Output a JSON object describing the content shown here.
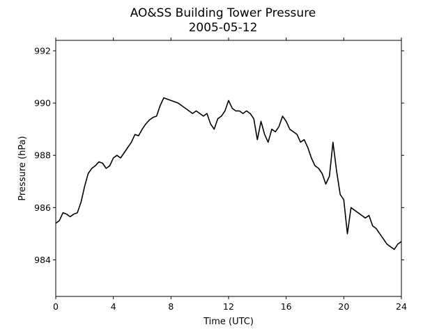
{
  "chart_data": {
    "type": "line",
    "title": "AO&SS Building Tower Pressure",
    "subtitle": "2005-05-12",
    "xlabel": "Time (UTC)",
    "ylabel": "Pressure (hPa)",
    "xlim": [
      0,
      24
    ],
    "ylim": [
      982.6,
      992.4
    ],
    "xticks": [
      0,
      4,
      8,
      12,
      16,
      20,
      24
    ],
    "yticks": [
      984,
      986,
      988,
      990,
      992
    ],
    "grid": false,
    "line_color": "#000000",
    "series": [
      {
        "x": [
          0,
          0.25,
          0.5,
          0.75,
          1.0,
          1.25,
          1.5,
          1.75,
          2.0,
          2.25,
          2.5,
          2.75,
          3.0,
          3.25,
          3.5,
          3.75,
          4.0,
          4.25,
          4.5,
          4.75,
          5.0,
          5.25,
          5.5,
          5.75,
          6.0,
          6.25,
          6.5,
          6.75,
          7.0,
          7.25,
          7.5,
          7.75,
          8.0,
          8.25,
          8.5,
          8.75,
          9.0,
          9.25,
          9.5,
          9.75,
          10.0,
          10.25,
          10.5,
          10.75,
          11.0,
          11.25,
          11.5,
          11.75,
          12.0,
          12.25,
          12.5,
          12.75,
          13.0,
          13.25,
          13.5,
          13.75,
          14.0,
          14.25,
          14.5,
          14.75,
          15.0,
          15.25,
          15.5,
          15.75,
          16.0,
          16.25,
          16.5,
          16.75,
          17.0,
          17.25,
          17.5,
          17.75,
          18.0,
          18.25,
          18.5,
          18.75,
          19.0,
          19.25,
          19.5,
          19.75,
          20.0,
          20.25,
          20.5,
          20.75,
          21.0,
          21.25,
          21.5,
          21.75,
          22.0,
          22.25,
          22.5,
          22.75,
          23.0,
          23.25,
          23.5,
          23.75,
          24.0
        ],
        "y": [
          985.4,
          985.5,
          985.8,
          985.75,
          985.65,
          985.75,
          985.8,
          986.2,
          986.8,
          987.3,
          987.5,
          987.6,
          987.75,
          987.7,
          987.5,
          987.6,
          987.9,
          988.0,
          987.9,
          988.1,
          988.3,
          988.5,
          988.8,
          988.75,
          989.0,
          989.2,
          989.35,
          989.45,
          989.5,
          989.9,
          990.2,
          990.15,
          990.1,
          990.05,
          990.0,
          989.9,
          989.8,
          989.7,
          989.6,
          989.7,
          989.6,
          989.5,
          989.6,
          989.2,
          989.0,
          989.4,
          989.5,
          989.7,
          990.1,
          989.8,
          989.7,
          989.7,
          989.6,
          989.7,
          989.6,
          989.4,
          988.6,
          989.3,
          988.8,
          988.5,
          989.0,
          988.9,
          989.1,
          989.5,
          989.3,
          989.0,
          988.9,
          988.8,
          988.5,
          988.6,
          988.3,
          987.9,
          987.6,
          987.5,
          987.3,
          986.9,
          987.2,
          988.5,
          987.4,
          986.5,
          986.3,
          985.0,
          986.0,
          985.9,
          985.8,
          985.7,
          985.6,
          985.7,
          985.3,
          985.2,
          985.0,
          984.8,
          984.6,
          984.5,
          984.4,
          984.6,
          984.7
        ]
      }
    ]
  }
}
